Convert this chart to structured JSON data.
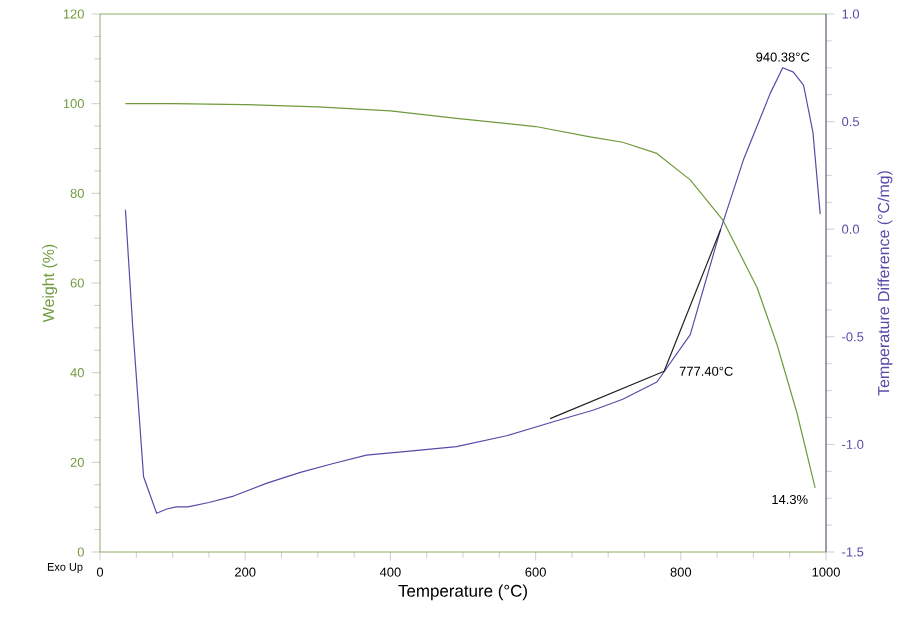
{
  "chart_data": {
    "type": "line",
    "xlabel": "Temperature (°C)",
    "ylabel": "Weight (%)",
    "y2label": "Temperature Difference (°C/mg)",
    "xlim": [
      0,
      1000
    ],
    "xticks": [
      0,
      200,
      400,
      600,
      800,
      1000
    ],
    "ylim": [
      0,
      120
    ],
    "yticks": [
      0,
      20,
      40,
      60,
      80,
      100,
      120
    ],
    "y2lim": [
      -1.5,
      1.0
    ],
    "y2ticks": [
      {
        "value": -1.5,
        "label": "-1.5"
      },
      {
        "value": -1.0,
        "label": "-1.0"
      },
      {
        "value": -0.5,
        "label": "-0.5"
      },
      {
        "value": 0.0,
        "label": "0.0"
      },
      {
        "value": 0.5,
        "label": "0.5"
      },
      {
        "value": 1.0,
        "label": "1.0"
      }
    ],
    "series": [
      {
        "color": "#6f9a3c",
        "axis": "y",
        "x": [
          35,
          100,
          200,
          300,
          400,
          491,
          600,
          675,
          720,
          767,
          813,
          858,
          905,
          933,
          960,
          985
        ],
        "values": [
          100,
          100,
          99.8,
          99.3,
          98.4,
          96.7,
          94.9,
          92.6,
          91.4,
          88.9,
          83,
          74,
          59,
          46,
          31,
          14.3
        ]
      },
      {
        "color": "#5a4aa8",
        "axis": "y2",
        "x": [
          35,
          45,
          60,
          78,
          92,
          105,
          121,
          150,
          184,
          230,
          276,
          320,
          367,
          430,
          491,
          560,
          629,
          680,
          720,
          767,
          813,
          854,
          886,
          923,
          940.38,
          955,
          969,
          982,
          992
        ],
        "values": [
          0.09,
          -0.45,
          -1.15,
          -1.32,
          -1.3,
          -1.29,
          -1.29,
          -1.27,
          -1.24,
          -1.18,
          -1.13,
          -1.09,
          -1.05,
          -1.03,
          -1.01,
          -0.96,
          -0.89,
          -0.84,
          -0.79,
          -0.71,
          -0.49,
          -0.01,
          0.32,
          0.63,
          0.75,
          0.73,
          0.67,
          0.45,
          0.07
        ]
      },
      {
        "color": "#222222",
        "axis": "y2",
        "x": [
          620,
          777,
          855
        ],
        "values": [
          -0.88,
          -0.66,
          0.0
        ]
      }
    ],
    "annotations": [
      {
        "text": "940.38°C",
        "x": 940.38,
        "y": 107.8
      },
      "777.40°C",
      {
        "text": "14.3%",
        "x": 985,
        "y": 14.3
      },
      "Exo Up"
    ],
    "line_style": "solid",
    "grid": false
  }
}
